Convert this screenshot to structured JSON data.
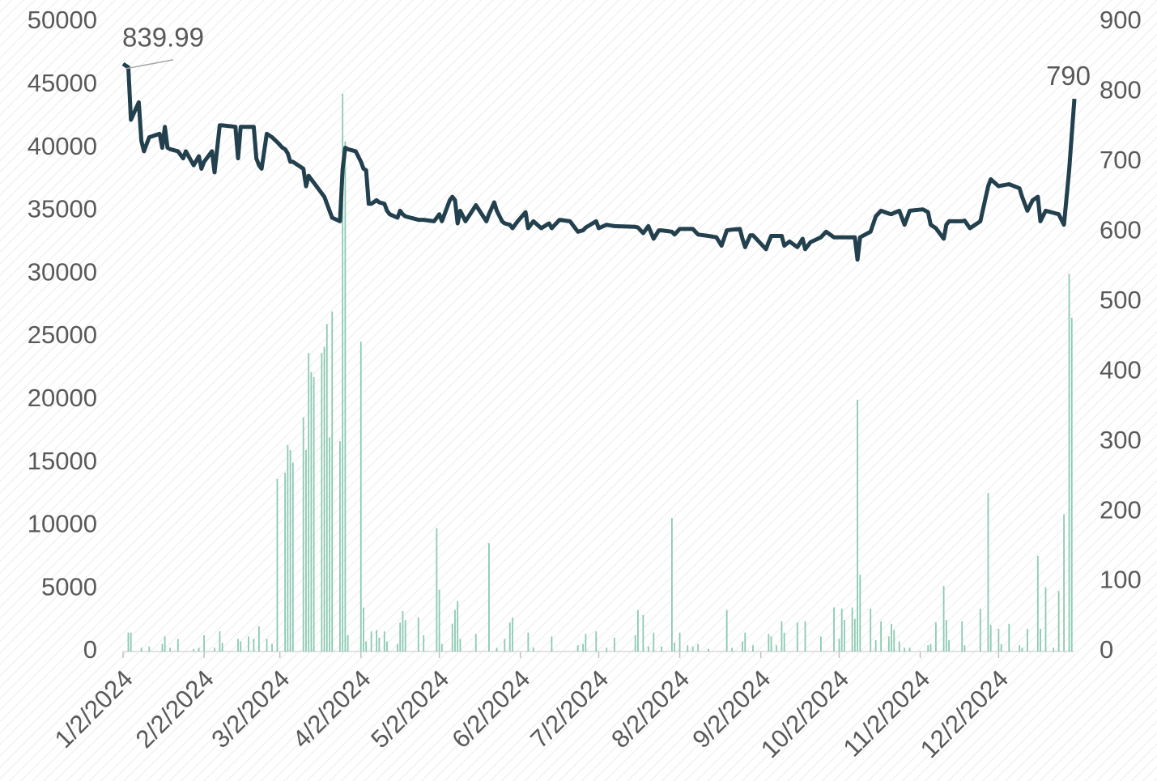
{
  "chart_data": {
    "type": "bar-line",
    "x": [
      "2024-01-02",
      "2024-01-04",
      "2024-01-05",
      "2024-01-08",
      "2024-01-09",
      "2024-01-10",
      "2024-01-12",
      "2024-01-16",
      "2024-01-17",
      "2024-01-18",
      "2024-01-19",
      "2024-01-20",
      "2024-01-23",
      "2024-01-25",
      "2024-01-26",
      "2024-01-29",
      "2024-01-31",
      "2024-02-01",
      "2024-02-02",
      "2024-02-05",
      "2024-02-06",
      "2024-02-08",
      "2024-02-09",
      "2024-02-14",
      "2024-02-15",
      "2024-02-16",
      "2024-02-19",
      "2024-02-21",
      "2024-02-22",
      "2024-02-23",
      "2024-02-24",
      "2024-02-26",
      "2024-02-28",
      "2024-03-01",
      "2024-03-03",
      "2024-03-04",
      "2024-03-05",
      "2024-03-06",
      "2024-03-07",
      "2024-03-11",
      "2024-03-12",
      "2024-03-13",
      "2024-03-14",
      "2024-03-15",
      "2024-03-18",
      "2024-03-19",
      "2024-03-20",
      "2024-03-21",
      "2024-03-22",
      "2024-03-25",
      "2024-03-26",
      "2024-03-27",
      "2024-03-28",
      "2024-03-31",
      "2024-04-02",
      "2024-04-03",
      "2024-04-04",
      "2024-04-05",
      "2024-04-06",
      "2024-04-08",
      "2024-04-09",
      "2024-04-11",
      "2024-04-12",
      "2024-04-13",
      "2024-04-16",
      "2024-04-17",
      "2024-04-18",
      "2024-04-19",
      "2024-04-24",
      "2024-04-26",
      "2024-04-30",
      "2024-05-01",
      "2024-05-02",
      "2024-05-03",
      "2024-05-06",
      "2024-05-07",
      "2024-05-08",
      "2024-05-09",
      "2024-05-10",
      "2024-05-12",
      "2024-05-16",
      "2024-05-20",
      "2024-05-21",
      "2024-05-23",
      "2024-05-24",
      "2024-05-26",
      "2024-05-27",
      "2024-05-29",
      "2024-05-30",
      "2024-06-01",
      "2024-06-04",
      "2024-06-05",
      "2024-06-07",
      "2024-06-10",
      "2024-06-13",
      "2024-06-14",
      "2024-06-17",
      "2024-06-21",
      "2024-06-24",
      "2024-06-26",
      "2024-06-27",
      "2024-07-01",
      "2024-07-02",
      "2024-07-05",
      "2024-07-08",
      "2024-07-16",
      "2024-07-17",
      "2024-07-19",
      "2024-07-21",
      "2024-07-23",
      "2024-07-25",
      "2024-07-26",
      "2024-07-30",
      "2024-07-31",
      "2024-08-02",
      "2024-08-05",
      "2024-08-07",
      "2024-08-09",
      "2024-08-13",
      "2024-08-16",
      "2024-08-18",
      "2024-08-20",
      "2024-08-22",
      "2024-08-25",
      "2024-08-26",
      "2024-08-27",
      "2024-08-29",
      "2024-08-30",
      "2024-09-04",
      "2024-09-05",
      "2024-09-06",
      "2024-09-08",
      "2024-09-10",
      "2024-09-11",
      "2024-09-13",
      "2024-09-16",
      "2024-09-18",
      "2024-09-19",
      "2024-09-21",
      "2024-09-25",
      "2024-09-27",
      "2024-09-30",
      "2024-10-02",
      "2024-10-03",
      "2024-10-04",
      "2024-10-07",
      "2024-10-08",
      "2024-10-09",
      "2024-10-10",
      "2024-10-14",
      "2024-10-16",
      "2024-10-18",
      "2024-10-21",
      "2024-10-22",
      "2024-10-23",
      "2024-10-25",
      "2024-10-27",
      "2024-10-29",
      "2024-11-03",
      "2024-11-05",
      "2024-11-06",
      "2024-11-08",
      "2024-11-11",
      "2024-11-12",
      "2024-11-13",
      "2024-11-18",
      "2024-11-19",
      "2024-11-21",
      "2024-11-25",
      "2024-11-28",
      "2024-11-29",
      "2024-12-02",
      "2024-12-03",
      "2024-12-06",
      "2024-12-10",
      "2024-12-11",
      "2024-12-13",
      "2024-12-15",
      "2024-12-17",
      "2024-12-18",
      "2024-12-20",
      "2024-12-23",
      "2024-12-25",
      "2024-12-27",
      "2024-12-29",
      "2024-12-30",
      "2024-12-31"
    ],
    "series": [
      {
        "type": "bar",
        "axis": "y",
        "color": "#8ccab2",
        "values": [
          null,
          1500,
          1500,
          null,
          300,
          null,
          400,
          null,
          600,
          1200,
          null,
          300,
          1000,
          null,
          null,
          200,
          300,
          null,
          1300,
          null,
          300,
          1600,
          700,
          null,
          1000,
          800,
          1200,
          1000,
          null,
          2000,
          null,
          1000,
          600,
          13700,
          null,
          14200,
          16400,
          16000,
          15000,
          18600,
          16000,
          23700,
          22200,
          21800,
          23700,
          24200,
          26000,
          17000,
          27000,
          16700,
          44300,
          40500,
          1300,
          null,
          24600,
          3500,
          800,
          null,
          1600,
          1700,
          1100,
          1600,
          800,
          null,
          600,
          2300,
          3200,
          2500,
          2700,
          1300,
          null,
          9800,
          4900,
          600,
          null,
          2200,
          3300,
          4000,
          1000,
          null,
          1400,
          null,
          8600,
          null,
          300,
          null,
          1000,
          2300,
          2700,
          null,
          null,
          1500,
          300,
          null,
          null,
          1200,
          null,
          null,
          500,
          600,
          1400,
          1600,
          null,
          300,
          1100,
          1300,
          3300,
          2900,
          400,
          1500,
          null,
          400,
          10600,
          700,
          1500,
          500,
          400,
          600,
          200,
          null,
          null,
          3300,
          300,
          null,
          800,
          1500,
          null,
          500,
          null,
          1400,
          1200,
          500,
          2400,
          1500,
          null,
          2300,
          null,
          2400,
          null,
          1200,
          null,
          3500,
          1000,
          3400,
          2500,
          3500,
          2600,
          20000,
          6100,
          3400,
          900,
          2400,
          1200,
          2200,
          1700,
          800,
          300,
          300,
          null,
          500,
          600,
          2300,
          5200,
          2500,
          900,
          2400,
          500,
          null,
          3400,
          12600,
          2100,
          1800,
          600,
          2200,
          500,
          300,
          1800,
          null,
          7600,
          1800,
          5100,
          300,
          4800,
          10900,
          30000,
          26500,
          null
        ]
      },
      {
        "type": "line",
        "axis": "y2",
        "color": "#22404d",
        "values": [
          839.99,
          835,
          760,
          785,
          730,
          715,
          735,
          740,
          720,
          750,
          720,
          718,
          715,
          705,
          715,
          695,
          708,
          690,
          700,
          715,
          685,
          752,
          752,
          750,
          705,
          750,
          750,
          750,
          705,
          695,
          690,
          740,
          735,
          728,
          720,
          718,
          712,
          700,
          700,
          690,
          665,
          680,
          675,
          670,
          655,
          650,
          640,
          630,
          620,
          615,
          690,
          720,
          718,
          715,
          700,
          690,
          688,
          640,
          640,
          645,
          642,
          640,
          630,
          625,
          620,
          630,
          625,
          622,
          617,
          617,
          615,
          620,
          625,
          615,
          645,
          650,
          645,
          612,
          630,
          615,
          638,
          615,
          625,
          642,
          630,
          615,
          612,
          610,
          605,
          615,
          628,
          605,
          615,
          605,
          612,
          605,
          617,
          615,
          600,
          602,
          606,
          615,
          605,
          610,
          608,
          607,
          606,
          598,
          608,
          590,
          602,
          602,
          600,
          596,
          604,
          604,
          604,
          596,
          594,
          592,
          580,
          602,
          603,
          604,
          590,
          578,
          595,
          595,
          575,
          585,
          594,
          594,
          594,
          580,
          586,
          578,
          590,
          575,
          585,
          592,
          600,
          592,
          592,
          592,
          592,
          592,
          592,
          560,
          592,
          600,
          622,
          630,
          626,
          625,
          627,
          630,
          610,
          630,
          632,
          628,
          610,
          605,
          590,
          610,
          615,
          615,
          616,
          605,
          615,
          665,
          675,
          665,
          666,
          668,
          662,
          650,
          630,
          645,
          650,
          615,
          630,
          627,
          625,
          610,
          688,
          740,
          790
        ]
      }
    ],
    "xlim": [
      "2024-01-02",
      "2024-12-31"
    ],
    "xticks": [
      {
        "value": "2024-01-02",
        "label": "1/2/2024"
      },
      {
        "value": "2024-02-02",
        "label": "2/2/2024"
      },
      {
        "value": "2024-03-02",
        "label": "3/2/2024"
      },
      {
        "value": "2024-04-02",
        "label": "4/2/2024"
      },
      {
        "value": "2024-05-02",
        "label": "5/2/2024"
      },
      {
        "value": "2024-06-02",
        "label": "6/2/2024"
      },
      {
        "value": "2024-07-02",
        "label": "7/2/2024"
      },
      {
        "value": "2024-08-02",
        "label": "8/2/2024"
      },
      {
        "value": "2024-09-02",
        "label": "9/2/2024"
      },
      {
        "value": "2024-10-02",
        "label": "10/2/2024"
      },
      {
        "value": "2024-11-02",
        "label": "11/2/2024"
      },
      {
        "value": "2024-12-02",
        "label": "12/2/2024"
      }
    ],
    "ylim": [
      0,
      50000
    ],
    "yticks": [
      0,
      5000,
      10000,
      15000,
      20000,
      25000,
      30000,
      35000,
      40000,
      45000,
      50000
    ],
    "y2lim": [
      0,
      900
    ],
    "y2ticks": [
      0,
      100,
      200,
      300,
      400,
      500,
      600,
      700,
      800,
      900
    ],
    "grid": false
  }
}
